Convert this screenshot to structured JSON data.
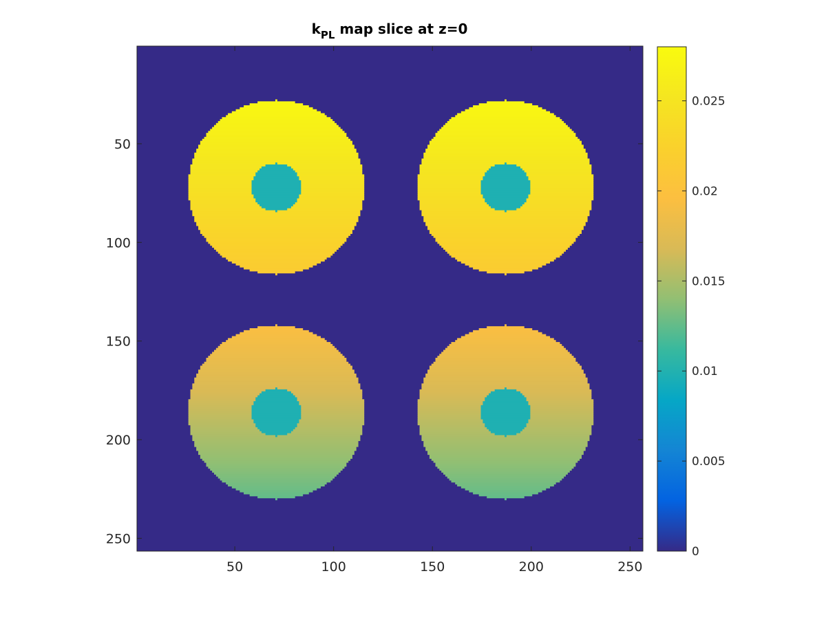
{
  "chart_data": {
    "type": "heatmap",
    "title": "k_PL map slice at z=0",
    "title_parts": {
      "main": "k",
      "subscript": "PL",
      "rest": " map slice at z=0"
    },
    "xlabel": "",
    "ylabel": "",
    "xlim": [
      0.5,
      256.5
    ],
    "ylim": [
      256.5,
      0.5
    ],
    "y_axis_direction": "reversed",
    "x_ticks": [
      50,
      100,
      150,
      200,
      250
    ],
    "y_ticks": [
      50,
      100,
      150,
      200,
      250
    ],
    "x_tick_labels": [
      "50",
      "100",
      "150",
      "200",
      "250"
    ],
    "y_tick_labels": [
      "50",
      "100",
      "150",
      "200",
      "250"
    ],
    "grid": false,
    "colormap": "parula",
    "background_value": 0,
    "colorbar": {
      "location": "right",
      "clim": [
        0,
        0.028
      ],
      "ticks": [
        0,
        0.005,
        0.01,
        0.015,
        0.02,
        0.025
      ],
      "tick_labels": [
        "0",
        "0.005",
        "0.01",
        "0.015",
        "0.02",
        "0.025"
      ]
    },
    "regions": [
      {
        "name": "top-left",
        "shape": "disk",
        "center": [
          71,
          72
        ],
        "radius": 44,
        "value_top": 0.0275,
        "value_bottom": 0.0215,
        "inner_center": [
          71,
          72
        ],
        "inner_radius": 12,
        "inner_value": 0.0098
      },
      {
        "name": "top-right",
        "shape": "disk",
        "center": [
          187,
          72
        ],
        "radius": 44,
        "value_top": 0.0275,
        "value_bottom": 0.0215,
        "inner_center": [
          187,
          72
        ],
        "inner_radius": 12,
        "inner_value": 0.0098
      },
      {
        "name": "bottom-left",
        "shape": "disk",
        "center": [
          71,
          186
        ],
        "radius": 44,
        "value_top": 0.0195,
        "value_bottom": 0.0125,
        "inner_center": [
          71,
          186
        ],
        "inner_radius": 12,
        "inner_value": 0.0098
      },
      {
        "name": "bottom-right",
        "shape": "disk",
        "center": [
          187,
          186
        ],
        "radius": 44,
        "value_top": 0.0195,
        "value_bottom": 0.0125,
        "inner_center": [
          187,
          186
        ],
        "inner_radius": 12,
        "inner_value": 0.0098
      }
    ]
  }
}
